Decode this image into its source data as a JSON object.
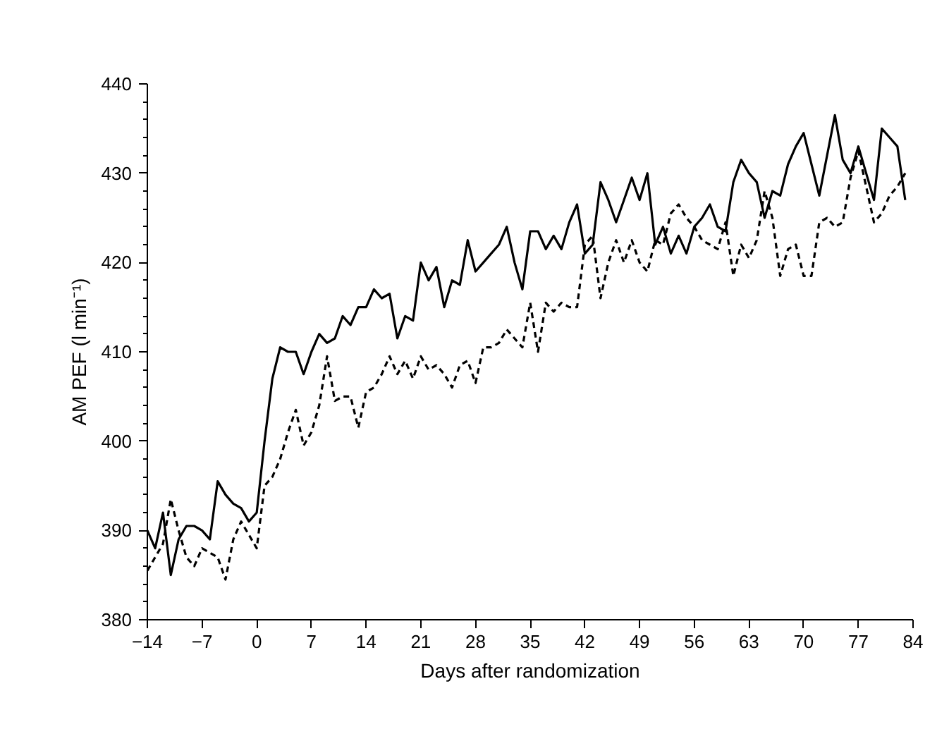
{
  "chart_data": {
    "type": "line",
    "xlabel": "Days after randomization",
    "ylabel": "AM PEF (l min⁻¹)",
    "x": [
      -14,
      -13,
      -12,
      -11,
      -10,
      -9,
      -8,
      -7,
      -6,
      -5,
      -4,
      -3,
      -2,
      -1,
      0,
      1,
      2,
      3,
      4,
      5,
      6,
      7,
      8,
      9,
      10,
      11,
      12,
      13,
      14,
      15,
      16,
      17,
      18,
      19,
      20,
      21,
      22,
      23,
      24,
      25,
      26,
      27,
      28,
      29,
      30,
      31,
      32,
      33,
      34,
      35,
      36,
      37,
      38,
      39,
      40,
      41,
      42,
      43,
      44,
      45,
      46,
      47,
      48,
      49,
      50,
      51,
      52,
      53,
      54,
      55,
      56,
      57,
      58,
      59,
      60,
      61,
      62,
      63,
      64,
      65,
      66,
      67,
      68,
      69,
      70,
      71,
      72,
      73,
      74,
      75,
      76,
      77,
      78,
      79,
      80,
      81,
      82,
      83
    ],
    "series": [
      {
        "color": "#000000",
        "line_style": "solid",
        "values": [
          390,
          388,
          392,
          385,
          389,
          390.5,
          390.5,
          390,
          389,
          395.5,
          394,
          393,
          392.5,
          391,
          392,
          400,
          407,
          410.5,
          410,
          410,
          407.5,
          410,
          412,
          411,
          411.5,
          414,
          413,
          415,
          415,
          417,
          416,
          416.5,
          411.5,
          414,
          413.5,
          420,
          418,
          419.5,
          415,
          418,
          417.5,
          422.5,
          419,
          420,
          421,
          422,
          424,
          420,
          417,
          423.5,
          423.5,
          421.5,
          423,
          421.5,
          424.5,
          426.5,
          421,
          422,
          429,
          427,
          424.5,
          427,
          429.5,
          427,
          430,
          422,
          424,
          421,
          423,
          421,
          424,
          425,
          426.5,
          424,
          423.5,
          429,
          431.5,
          430,
          429,
          425,
          428,
          427.5,
          431,
          433,
          434.5,
          431,
          427.5,
          432,
          436.5,
          431.5,
          430,
          433,
          430,
          427,
          435,
          434,
          433,
          427
        ]
      },
      {
        "color": "#000000",
        "line_style": "dashed",
        "values": [
          385.5,
          387,
          388.5,
          393.5,
          390,
          387,
          386,
          388,
          387.5,
          387,
          384.5,
          389,
          391,
          389.5,
          388,
          395,
          396,
          398,
          401,
          403.5,
          399.5,
          401,
          404,
          409.5,
          404.5,
          405,
          405,
          401.5,
          405.5,
          406,
          407.5,
          409.5,
          407.5,
          409,
          407,
          409.5,
          408,
          408.5,
          407.5,
          406,
          408.5,
          409,
          406.5,
          410.5,
          410.5,
          411,
          412.5,
          411.5,
          410.5,
          415.5,
          410,
          415.5,
          414.5,
          415.5,
          415,
          415,
          422,
          423,
          416,
          420,
          422.5,
          420,
          422.5,
          420,
          419,
          422.5,
          422,
          425.5,
          426.5,
          425,
          424,
          422.5,
          422,
          421.5,
          424.5,
          418.5,
          422,
          420.5,
          422.5,
          428,
          425,
          418.5,
          421.5,
          422,
          418.5,
          418.5,
          424.5,
          425,
          424,
          424.5,
          429.5,
          432.5,
          428.5,
          424.5,
          425.5,
          427.5,
          428.5,
          430
        ]
      }
    ],
    "xlim": [
      -14,
      84
    ],
    "xticks": [
      -14,
      -7,
      0,
      7,
      14,
      21,
      28,
      35,
      42,
      49,
      56,
      63,
      70,
      77,
      84
    ],
    "ylim": [
      380,
      440
    ],
    "yticks": [
      380,
      390,
      400,
      410,
      420,
      430,
      440
    ],
    "grid": false
  }
}
